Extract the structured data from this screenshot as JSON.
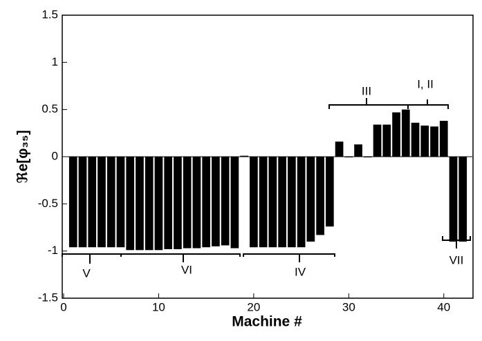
{
  "chart_data": {
    "type": "bar",
    "x_label": "Machine #",
    "y_label": "ℜe[φ₃₅]",
    "x": [
      1,
      2,
      3,
      4,
      5,
      6,
      7,
      8,
      9,
      10,
      11,
      12,
      13,
      14,
      15,
      16,
      17,
      18,
      19,
      20,
      21,
      22,
      23,
      24,
      25,
      26,
      27,
      28,
      29,
      30,
      31,
      32,
      33,
      34,
      35,
      36,
      37,
      38,
      39,
      40,
      41,
      42
    ],
    "values": [
      -0.96,
      -0.96,
      -0.96,
      -0.96,
      -0.96,
      -0.96,
      -0.99,
      -0.99,
      -0.99,
      -0.99,
      -0.98,
      -0.98,
      -0.97,
      -0.97,
      -0.96,
      -0.95,
      -0.94,
      -0.97,
      0.01,
      -0.96,
      -0.96,
      -0.96,
      -0.96,
      -0.96,
      -0.96,
      -0.9,
      -0.83,
      -0.74,
      0.16,
      0,
      0.13,
      0,
      0.34,
      0.34,
      0.47,
      0.5,
      0.36,
      0.33,
      0.32,
      0.38,
      -0.9,
      -0.9
    ],
    "color": "#000000",
    "xlim": [
      0,
      43
    ],
    "ylim": [
      -1.5,
      1.5
    ],
    "xticks": [
      0,
      10,
      20,
      30,
      40
    ],
    "yticks": [
      -1.5,
      -1,
      -0.5,
      0,
      0.5,
      1,
      1.5
    ],
    "annotations": [
      "V",
      "VI",
      "IV",
      "III",
      "I, II",
      "VII"
    ]
  }
}
